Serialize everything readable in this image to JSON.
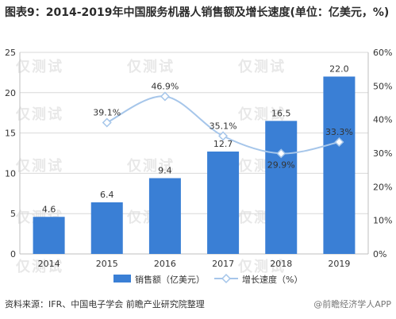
{
  "title": "图表9：2014-2019年中国服务机器人销售额及增长速度(单位：亿美元，%)",
  "source": "资料来源：IFR、中国电子学会 前瞻产业研究院整理",
  "source_right": "@前瞻经济学人APP",
  "watermark_text": "仅测试",
  "colors": {
    "bar": "#3a7fd5",
    "line": "#a6c6ea",
    "grid": "#d9d9d9",
    "text": "#333333"
  },
  "chart_data": {
    "type": "bar",
    "categories": [
      "2014",
      "2015",
      "2016",
      "2017",
      "2018",
      "2019"
    ],
    "series": [
      {
        "name": "销售额（亿美元）",
        "type": "bar",
        "axis": "left",
        "values": [
          4.6,
          6.4,
          9.4,
          12.7,
          16.5,
          22.0
        ],
        "labels": [
          "4.6",
          "6.4",
          "9.4",
          "12.7",
          "16.5",
          "22.0"
        ]
      },
      {
        "name": "增长速度（%）",
        "type": "line",
        "axis": "right",
        "values": [
          null,
          39.1,
          46.9,
          35.1,
          29.9,
          33.3
        ],
        "labels": [
          "",
          "39.1%",
          "46.9%",
          "35.1%",
          "29.9%",
          "33.3%"
        ]
      }
    ],
    "y_left": {
      "min": 0,
      "max": 25,
      "ticks": [
        "0",
        "5",
        "10",
        "15",
        "20",
        "25"
      ]
    },
    "y_right": {
      "min": 0,
      "max": 60,
      "ticks": [
        "0%",
        "10%",
        "20%",
        "30%",
        "40%",
        "50%",
        "60%"
      ]
    },
    "grid": true,
    "legend_position": "bottom"
  }
}
